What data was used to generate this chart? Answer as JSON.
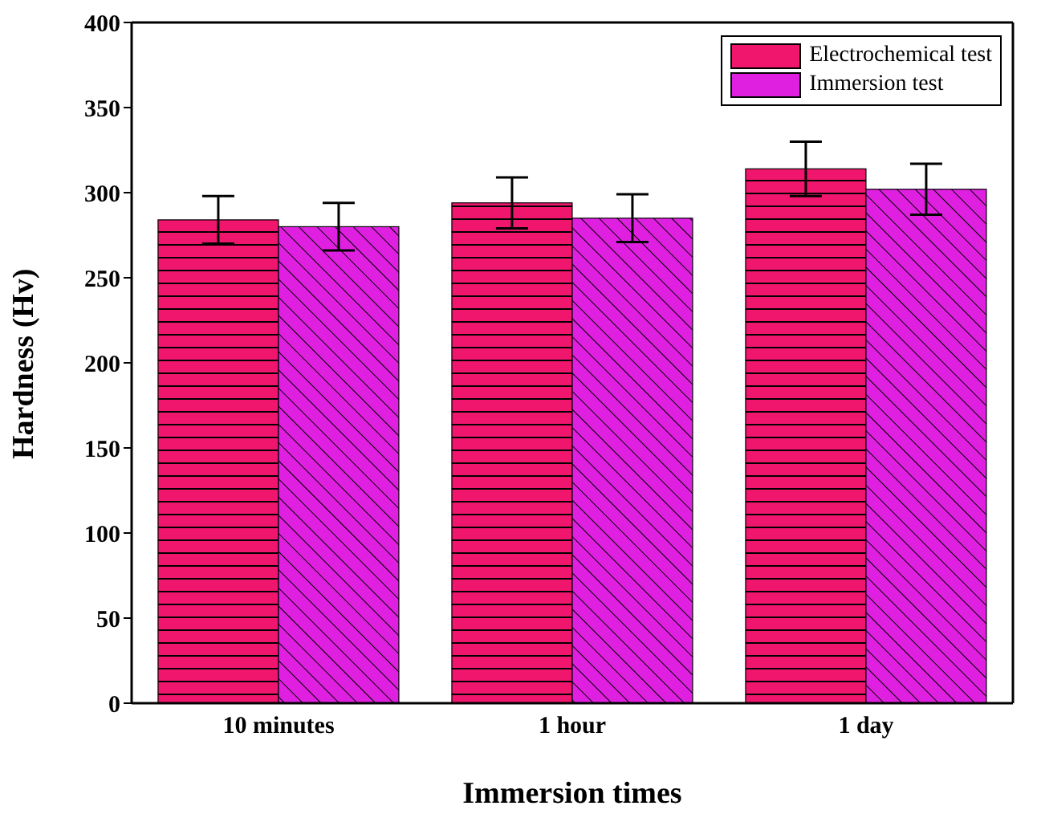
{
  "chart_data": {
    "type": "bar",
    "xlabel": "Immersion times",
    "ylabel": "Hardness (Hv)",
    "categories": [
      "10 minutes",
      "1 hour",
      "1 day"
    ],
    "series": [
      {
        "name": "Electrochemical test",
        "color": "#f0166e",
        "values": [
          284,
          294,
          314
        ],
        "errors": [
          14,
          15,
          16
        ]
      },
      {
        "name": "Immersion test",
        "color": "#e020e0",
        "values": [
          280,
          285,
          302
        ],
        "errors": [
          14,
          14,
          15
        ]
      }
    ],
    "ylim": [
      0,
      400
    ],
    "yticks": [
      0,
      50,
      100,
      150,
      200,
      250,
      300,
      350,
      400
    ],
    "legend": "top right",
    "grid": false
  }
}
